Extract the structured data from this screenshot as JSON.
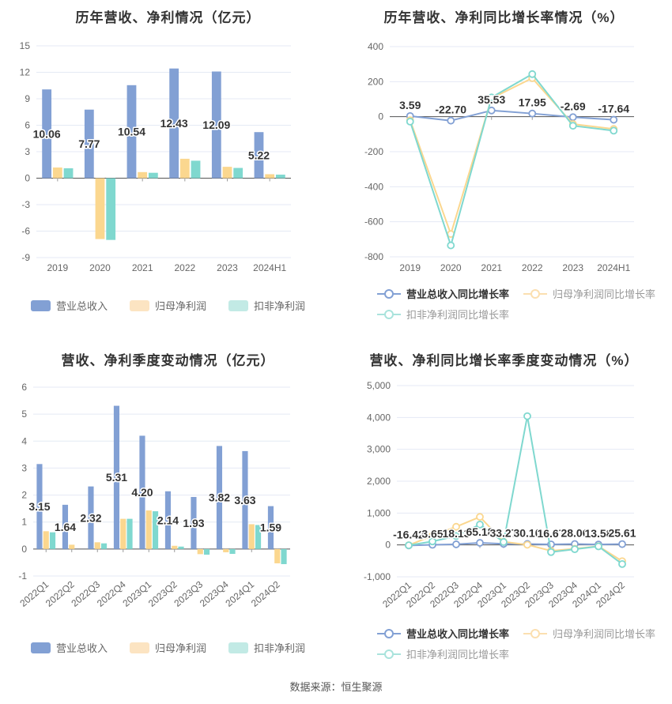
{
  "footer": "数据来源：恒生聚源",
  "style": {
    "background": "#ffffff",
    "title_color": "#333333",
    "axis_label_color": "#666666",
    "grid_color": "#E4EAF4",
    "zero_axis_color": "#555555",
    "tick_color": "#999999",
    "data_label_color": "#333333",
    "data_label_halo": "#ffffff",
    "series_blue": "#82A0D4",
    "series_yellow": "#FBD78F",
    "series_teal": "#7FD8CF",
    "legend_first_label_color": "#333333",
    "legend_label_color": "#999999",
    "bar_legend_label_color": "#666666"
  },
  "chart_data": [
    {
      "type": "bar",
      "title": "历年营收、净利情况（亿元）",
      "ylabel": "亿元",
      "categories": [
        "2019",
        "2020",
        "2021",
        "2022",
        "2023",
        "2024H1"
      ],
      "ylim": [
        -9,
        15
      ],
      "ystep": 3,
      "yticks": [
        "15",
        "12",
        "9",
        "6",
        "3",
        "0",
        "-3",
        "-6",
        "-9"
      ],
      "grid": true,
      "legend_position": "bottom",
      "series": [
        {
          "name": "营业总收入",
          "color": "#82A0D4",
          "values": [
            10.06,
            7.77,
            10.54,
            12.43,
            12.09,
            5.22
          ],
          "labels": [
            "10.06",
            "7.77",
            "10.54",
            "12.43",
            "12.09",
            "5.22"
          ]
        },
        {
          "name": "归母净利润",
          "color": "#FBD78F",
          "legend_color": "#FCE4C2",
          "values": [
            1.21,
            -6.9,
            0.69,
            2.2,
            1.29,
            0.45
          ]
        },
        {
          "name": "扣非净利润",
          "color": "#7FD8CF",
          "legend_color": "#C2EAE5",
          "values": [
            1.12,
            -7.0,
            0.61,
            1.98,
            1.16,
            0.4
          ]
        }
      ]
    },
    {
      "type": "line",
      "title": "历年营收、净利同比增长率情况（%）",
      "ylabel": "%",
      "categories": [
        "2019",
        "2020",
        "2021",
        "2022",
        "2023",
        "2024H1"
      ],
      "ylim": [
        -800,
        400
      ],
      "ystep": 200,
      "yticks": [
        "400",
        "200",
        "0",
        "-200",
        "-400",
        "-600",
        "-800"
      ],
      "grid": true,
      "legend_position": "bottom",
      "series": [
        {
          "name": "营业总收入同比增长率",
          "color": "#82A0D4",
          "values": [
            3.59,
            -22.7,
            35.53,
            17.95,
            -2.69,
            -17.64
          ],
          "labels": [
            "3.59",
            "-22.70",
            "35.53",
            "17.95",
            "-2.69",
            "-17.64"
          ]
        },
        {
          "name": "归母净利润同比增长率",
          "color": "#FBD78F",
          "legend_color": "#FBDFB0",
          "values": [
            -20,
            -670,
            105,
            220,
            -42,
            -70
          ]
        },
        {
          "name": "扣非净利润同比增长率",
          "color": "#7FD8CF",
          "legend_color": "#A9E3DC",
          "values": [
            -28,
            -735,
            110,
            243,
            -52,
            -80
          ]
        }
      ]
    },
    {
      "type": "bar",
      "title": "营收、净利季度变动情况（亿元）",
      "ylabel": "亿元",
      "categories": [
        "2022Q1",
        "2022Q2",
        "2022Q3",
        "2022Q4",
        "2023Q1",
        "2023Q2",
        "2023Q3",
        "2023Q4",
        "2024Q1",
        "2024Q2"
      ],
      "ylim": [
        -1,
        6
      ],
      "ystep": 1,
      "yticks": [
        "6",
        "5",
        "4",
        "3",
        "2",
        "1",
        "0",
        "-1"
      ],
      "grid": true,
      "legend_position": "bottom",
      "xlabel_rotate": 40,
      "series": [
        {
          "name": "营业总收入",
          "color": "#82A0D4",
          "values": [
            3.15,
            1.64,
            2.32,
            5.31,
            4.2,
            2.14,
            1.93,
            3.82,
            3.63,
            1.59
          ],
          "labels": [
            "3.15",
            "1.64",
            "2.32",
            "5.31",
            "4.20",
            "2.14",
            "1.93",
            "3.82",
            "3.63",
            "1.59"
          ]
        },
        {
          "name": "归母净利润",
          "color": "#FBD78F",
          "legend_color": "#FCE4C2",
          "values": [
            0.66,
            0.16,
            0.25,
            1.12,
            1.43,
            0.12,
            -0.19,
            -0.12,
            0.92,
            -0.53
          ]
        },
        {
          "name": "扣非净利润",
          "color": "#7FD8CF",
          "legend_color": "#C2EAE5",
          "values": [
            0.62,
            0,
            0.21,
            1.12,
            1.4,
            0.09,
            -0.21,
            -0.18,
            0.89,
            -0.56
          ]
        }
      ]
    },
    {
      "type": "line",
      "title": "营收、净利同比增长率季度变动情况（%）",
      "ylabel": "%",
      "categories": [
        "2022Q1",
        "2022Q2",
        "2022Q3",
        "2022Q4",
        "2023Q1",
        "2023Q2",
        "2023Q3",
        "2023Q4",
        "2024Q1",
        "2024Q2"
      ],
      "ylim": [
        -1000,
        5000
      ],
      "ystep": 1000,
      "yformat": "comma",
      "yticks": [
        "5,000",
        "4,000",
        "3,000",
        "2,000",
        "1,000",
        "0",
        "-1,000"
      ],
      "grid": true,
      "legend_position": "bottom",
      "xlabel_rotate": 40,
      "series": [
        {
          "name": "营业总收入同比增长率",
          "color": "#82A0D4",
          "values": [
            -16.42,
            3.65,
            18.13,
            65.18,
            33.27,
            30.1,
            16.67,
            28.06,
            13.58,
            25.61
          ],
          "labels": [
            "-16.42",
            "3.65",
            "18.13",
            "65.18",
            "33.27",
            "30.10",
            "16.67",
            "28.06",
            "13.58",
            "25.61"
          ]
        },
        {
          "name": "归母净利润同比增长率",
          "color": "#FBD78F",
          "legend_color": "#FBDFB0",
          "values": [
            -10,
            290,
            570,
            880,
            100,
            5,
            -185,
            -120,
            -40,
            -510
          ]
        },
        {
          "name": "扣非净利润同比增长率",
          "color": "#7FD8CF",
          "legend_color": "#A9E3DC",
          "values": [
            -12,
            110,
            280,
            640,
            90,
            4040,
            -225,
            -135,
            -45,
            -600
          ]
        }
      ]
    }
  ]
}
